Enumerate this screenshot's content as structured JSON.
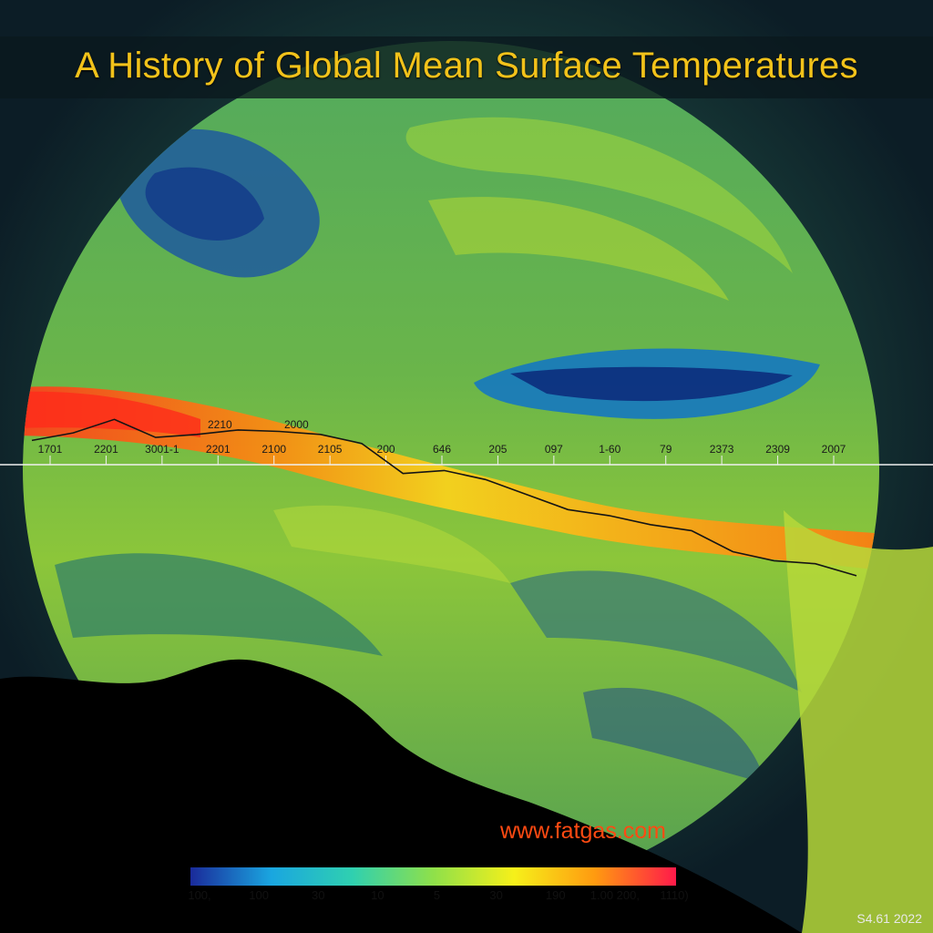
{
  "title": "A History of Global Mean Surface Temperatures",
  "watermark": "www.fatgas.com",
  "footer": "S4.61 2022",
  "colors": {
    "title": "#f2c21a",
    "watermark": "#ff4a12",
    "trend_line": "#151515",
    "axis_line": "#f0f0f0"
  },
  "chart_data": {
    "type": "heatmap",
    "title": "A History of Global Mean Surface Temperatures",
    "xlabel": "",
    "ylabel": "",
    "x_tick_labels": [
      "1701",
      "2201",
      "3001-1",
      "2201",
      "2100",
      "2105",
      "200",
      "646",
      "205",
      "097",
      "1-60",
      "79",
      "2373",
      "2309",
      "2007"
    ],
    "floating_labels": [
      "2210",
      "2000"
    ],
    "colorbar": {
      "colors": [
        "#1a2a9a",
        "#1aa6e0",
        "#2fd0b0",
        "#8fe04a",
        "#f6f01a",
        "#ff9a10",
        "#ff1a4a"
      ],
      "tick_labels": [
        "100,",
        "100",
        "30",
        "10",
        "5",
        "30",
        "190",
        "1.00 200,",
        "1110)"
      ]
    },
    "trend_line": {
      "note_free": true,
      "x": [
        0,
        0.05,
        0.1,
        0.15,
        0.2,
        0.25,
        0.3,
        0.35,
        0.4,
        0.45,
        0.5,
        0.55,
        0.6,
        0.65,
        0.7,
        0.75,
        0.8,
        0.85,
        0.9,
        0.95,
        1.0
      ],
      "y": [
        0.2,
        0.45,
        0.9,
        0.3,
        0.4,
        0.55,
        0.5,
        0.4,
        0.1,
        -0.9,
        -0.8,
        -1.1,
        -1.6,
        -2.1,
        -2.3,
        -2.6,
        -2.8,
        -3.5,
        -3.8,
        -3.9,
        -4.3
      ]
    }
  }
}
